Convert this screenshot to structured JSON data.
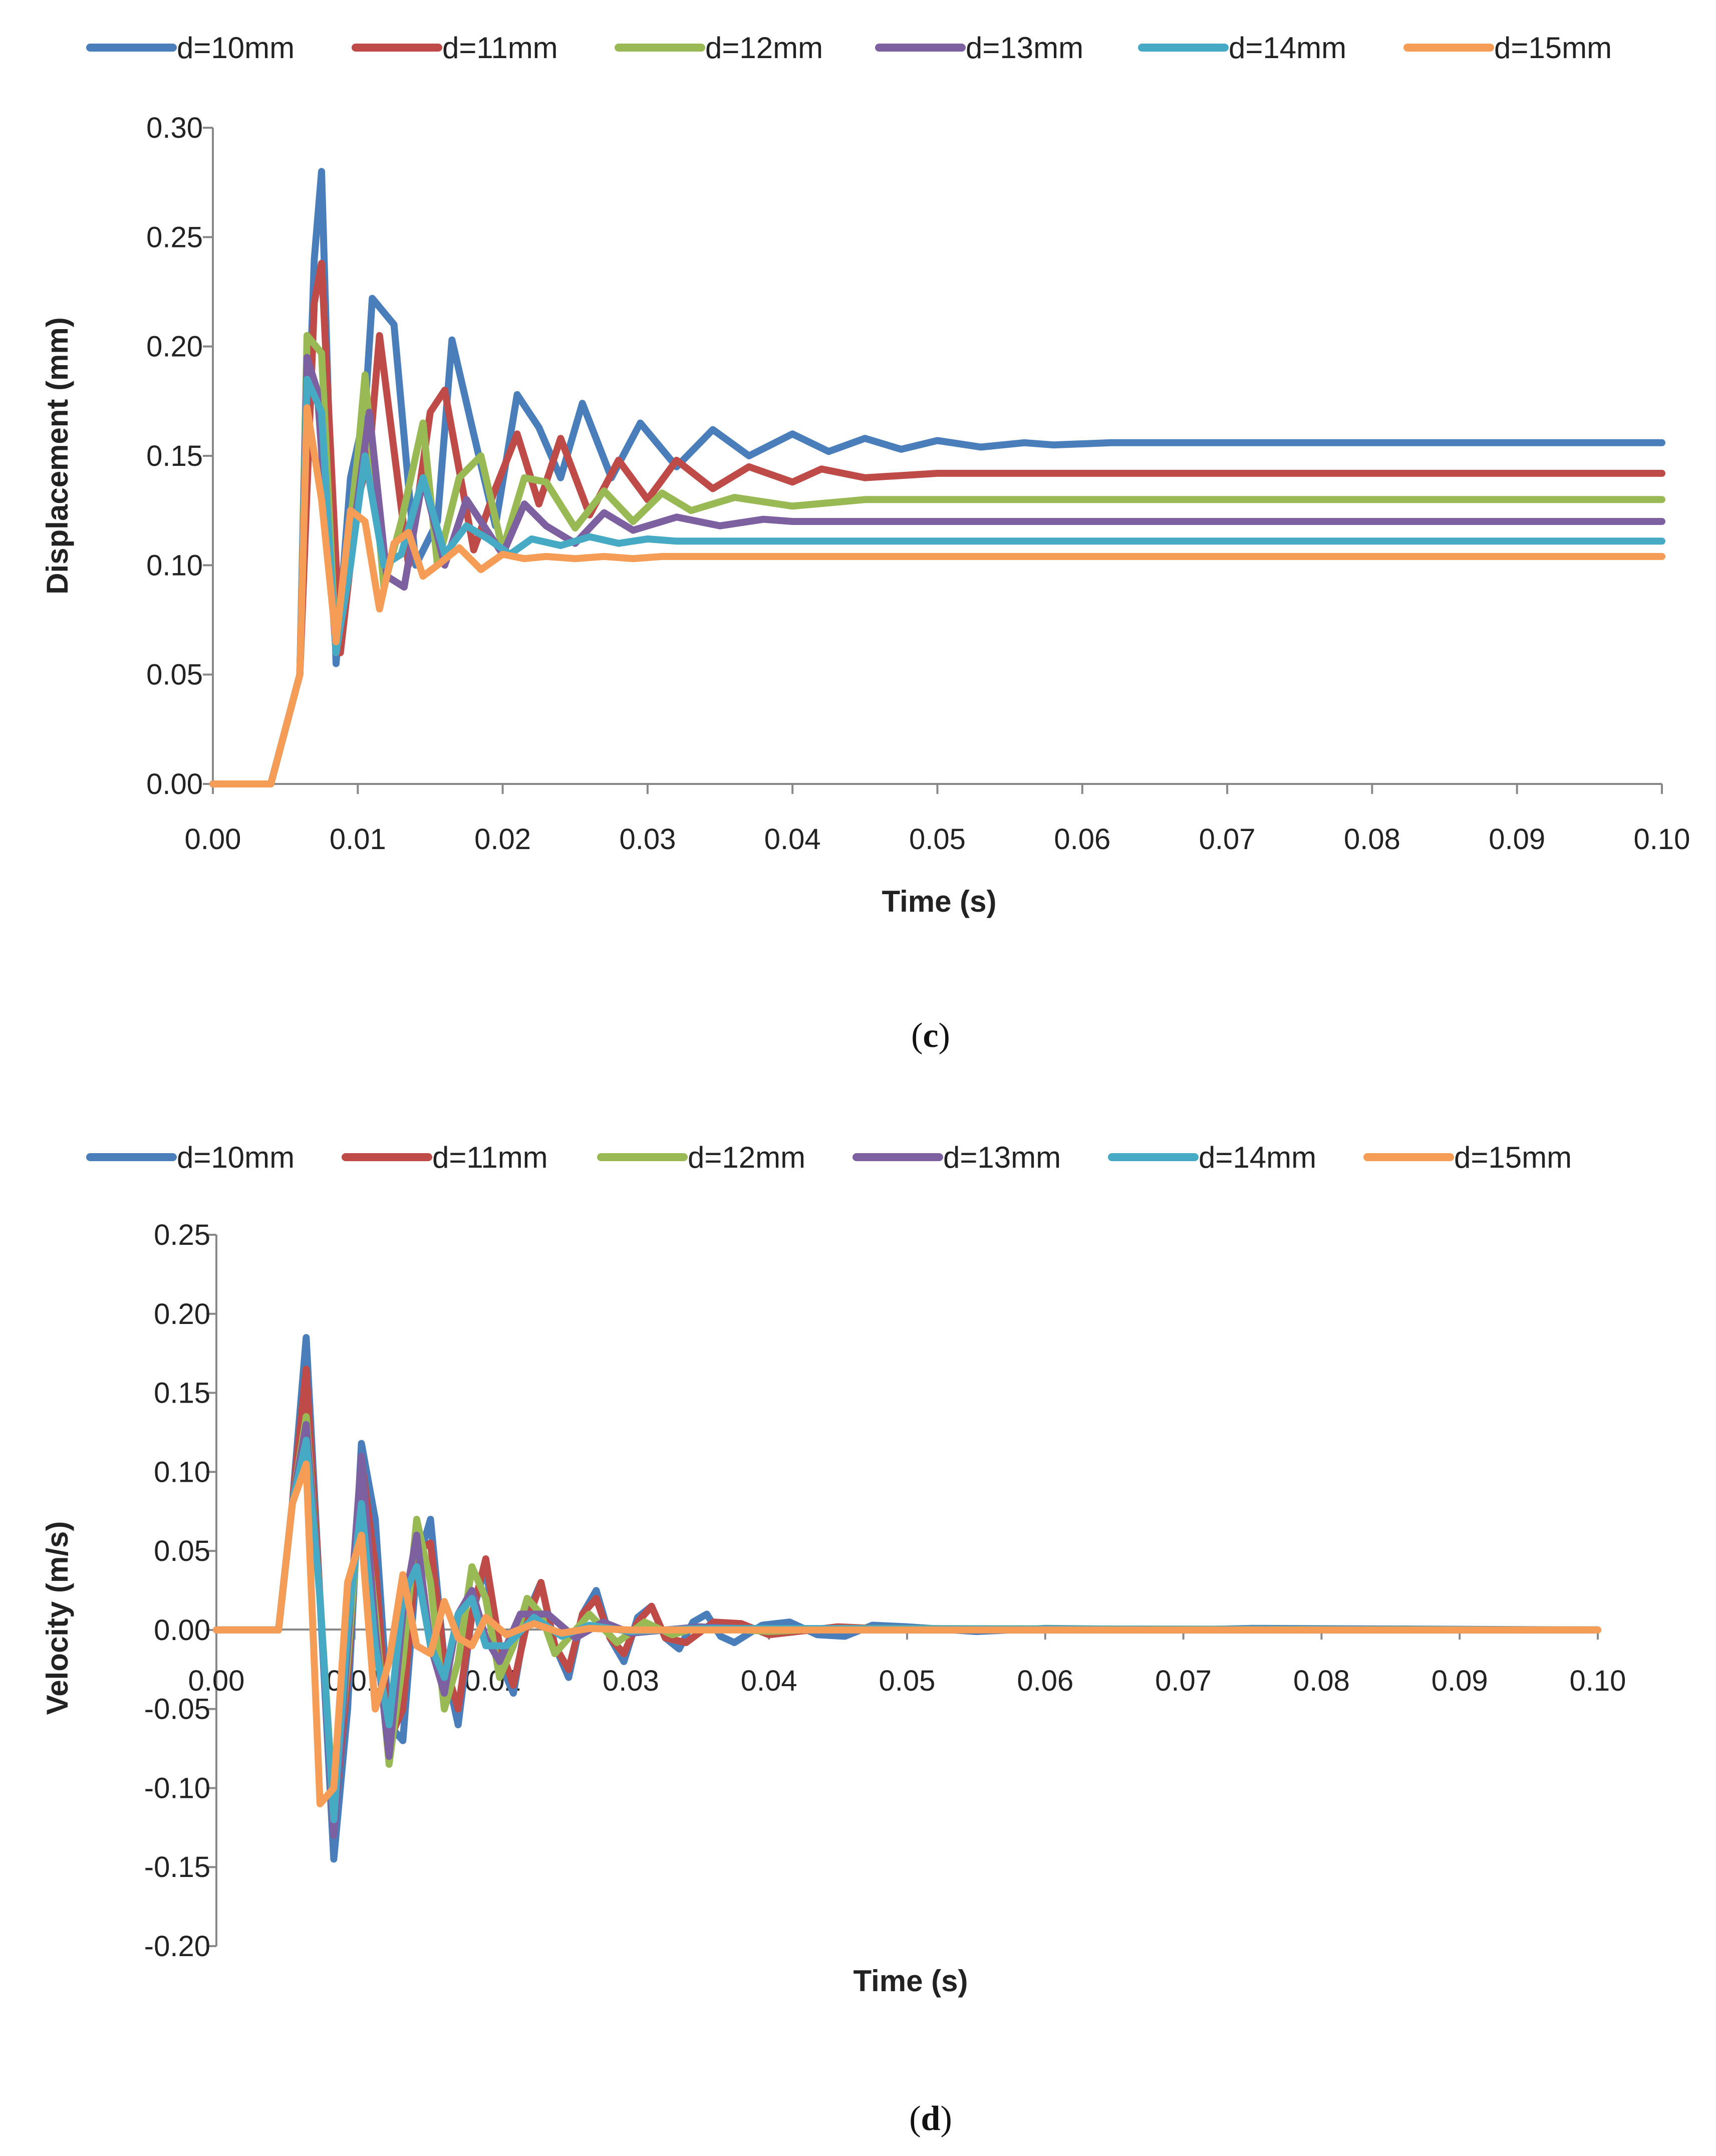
{
  "chart_data": [
    {
      "type": "line",
      "caption_open": "(",
      "caption_letter": "c",
      "caption_close": ")",
      "xlabel": "Time (s)",
      "ylabel": "Displacement  (mm)",
      "xlim": [
        0,
        0.1
      ],
      "ylim": [
        0,
        0.3
      ],
      "xticks": [
        "0.00",
        "0.01",
        "0.02",
        "0.03",
        "0.04",
        "0.05",
        "0.06",
        "0.07",
        "0.08",
        "0.09",
        "0.10"
      ],
      "yticks": [
        "0.00",
        "0.05",
        "0.10",
        "0.15",
        "0.20",
        "0.25",
        "0.30"
      ],
      "series": [
        {
          "name": "d=10mm",
          "color": "#4A7EBB",
          "x": [
            0,
            0.004,
            0.006,
            0.007,
            0.0075,
            0.0085,
            0.0095,
            0.0105,
            0.011,
            0.0125,
            0.014,
            0.0155,
            0.0165,
            0.018,
            0.0195,
            0.021,
            0.0225,
            0.024,
            0.0255,
            0.0275,
            0.0295,
            0.032,
            0.0345,
            0.037,
            0.04,
            0.0425,
            0.045,
            0.0475,
            0.05,
            0.053,
            0.056,
            0.058,
            0.062,
            0.1
          ],
          "y": [
            0,
            0,
            0.05,
            0.24,
            0.28,
            0.055,
            0.14,
            0.17,
            0.222,
            0.21,
            0.1,
            0.12,
            0.203,
            0.16,
            0.118,
            0.178,
            0.163,
            0.14,
            0.174,
            0.14,
            0.165,
            0.145,
            0.162,
            0.15,
            0.16,
            0.152,
            0.158,
            0.153,
            0.157,
            0.154,
            0.156,
            0.155,
            0.156,
            0.156
          ]
        },
        {
          "name": "d=11mm",
          "color": "#BE4B48",
          "x": [
            0,
            0.004,
            0.006,
            0.007,
            0.0075,
            0.0088,
            0.01,
            0.0108,
            0.0115,
            0.0135,
            0.015,
            0.016,
            0.018,
            0.0195,
            0.021,
            0.0225,
            0.024,
            0.026,
            0.028,
            0.03,
            0.032,
            0.0345,
            0.037,
            0.04,
            0.042,
            0.045,
            0.05,
            0.1
          ],
          "y": [
            0,
            0,
            0.05,
            0.22,
            0.238,
            0.06,
            0.13,
            0.15,
            0.205,
            0.1,
            0.17,
            0.18,
            0.107,
            0.135,
            0.16,
            0.128,
            0.158,
            0.123,
            0.148,
            0.13,
            0.148,
            0.135,
            0.145,
            0.138,
            0.144,
            0.14,
            0.142,
            0.142
          ]
        },
        {
          "name": "d=12mm",
          "color": "#98B954",
          "x": [
            0,
            0.004,
            0.006,
            0.0065,
            0.0075,
            0.0085,
            0.01,
            0.0105,
            0.0118,
            0.013,
            0.0145,
            0.0155,
            0.017,
            0.0185,
            0.02,
            0.0215,
            0.023,
            0.025,
            0.027,
            0.029,
            0.031,
            0.033,
            0.036,
            0.04,
            0.045,
            0.1
          ],
          "y": [
            0,
            0,
            0.05,
            0.205,
            0.197,
            0.06,
            0.15,
            0.187,
            0.09,
            0.12,
            0.165,
            0.1,
            0.14,
            0.15,
            0.107,
            0.14,
            0.138,
            0.117,
            0.134,
            0.12,
            0.133,
            0.125,
            0.131,
            0.127,
            0.13,
            0.13
          ]
        },
        {
          "name": "d=13mm",
          "color": "#7D60A0",
          "x": [
            0,
            0.004,
            0.006,
            0.0065,
            0.0072,
            0.0085,
            0.0098,
            0.0108,
            0.012,
            0.0132,
            0.0145,
            0.016,
            0.0175,
            0.019,
            0.02,
            0.0215,
            0.023,
            0.025,
            0.027,
            0.029,
            0.032,
            0.035,
            0.038,
            0.04,
            0.1
          ],
          "y": [
            0,
            0,
            0.05,
            0.195,
            0.18,
            0.06,
            0.12,
            0.17,
            0.095,
            0.09,
            0.14,
            0.1,
            0.13,
            0.115,
            0.105,
            0.128,
            0.118,
            0.11,
            0.124,
            0.116,
            0.122,
            0.118,
            0.121,
            0.12,
            0.12
          ]
        },
        {
          "name": "d=14mm",
          "color": "#46AAC5",
          "x": [
            0,
            0.004,
            0.006,
            0.0065,
            0.0075,
            0.0085,
            0.0095,
            0.0105,
            0.0118,
            0.013,
            0.0145,
            0.016,
            0.0175,
            0.019,
            0.0205,
            0.022,
            0.024,
            0.026,
            0.028,
            0.03,
            0.032,
            0.1
          ],
          "y": [
            0,
            0,
            0.05,
            0.185,
            0.17,
            0.06,
            0.1,
            0.15,
            0.1,
            0.105,
            0.14,
            0.105,
            0.118,
            0.112,
            0.105,
            0.112,
            0.109,
            0.113,
            0.11,
            0.112,
            0.111,
            0.111
          ]
        },
        {
          "name": "d=15mm",
          "color": "#F59D56",
          "x": [
            0,
            0.004,
            0.006,
            0.0065,
            0.0075,
            0.0085,
            0.0095,
            0.0105,
            0.0115,
            0.0125,
            0.0135,
            0.0145,
            0.0155,
            0.017,
            0.0185,
            0.02,
            0.0215,
            0.023,
            0.025,
            0.027,
            0.029,
            0.031,
            0.1
          ],
          "y": [
            0,
            0,
            0.05,
            0.172,
            0.13,
            0.065,
            0.125,
            0.12,
            0.08,
            0.11,
            0.115,
            0.095,
            0.1,
            0.108,
            0.098,
            0.105,
            0.103,
            0.104,
            0.103,
            0.104,
            0.103,
            0.104,
            0.104
          ]
        }
      ]
    },
    {
      "type": "line",
      "caption_open": "(",
      "caption_letter": "d",
      "caption_close": ")",
      "xlabel": "Time (s)",
      "ylabel": "Velocity (m/s)",
      "xlim": [
        0,
        0.1
      ],
      "ylim": [
        -0.2,
        0.25
      ],
      "xticks": [
        "0.00",
        "0.01",
        "0.02",
        "0.03",
        "0.04",
        "0.05",
        "0.06",
        "0.07",
        "0.08",
        "0.09",
        "0.10"
      ],
      "yticks": [
        "-0.20",
        "-0.15",
        "-0.10",
        "-0.05",
        "0.00",
        "0.05",
        "0.10",
        "0.15",
        "0.20",
        "0.25"
      ],
      "series": [
        {
          "name": "d=10mm",
          "color": "#4A7EBB",
          "x": [
            0,
            0.0045,
            0.0055,
            0.0065,
            0.0075,
            0.0085,
            0.0095,
            0.0105,
            0.0115,
            0.0125,
            0.0135,
            0.0145,
            0.0155,
            0.0165,
            0.0175,
            0.0185,
            0.0195,
            0.0205,
            0.0215,
            0.0225,
            0.0235,
            0.0245,
            0.0255,
            0.0265,
            0.0275,
            0.0285,
            0.0295,
            0.0305,
            0.0315,
            0.0325,
            0.0335,
            0.0345,
            0.0355,
            0.0365,
            0.0375,
            0.0395,
            0.0415,
            0.0435,
            0.0455,
            0.0475,
            0.05,
            0.055,
            0.06,
            0.07,
            0.075,
            0.1
          ],
          "y": [
            0,
            0,
            0.08,
            0.185,
            0.02,
            -0.145,
            -0.05,
            0.118,
            0.07,
            -0.06,
            -0.07,
            0.04,
            0.07,
            -0.02,
            -0.06,
            0.01,
            0.04,
            -0.02,
            -0.04,
            0.01,
            0.03,
            -0.01,
            -0.03,
            0.01,
            0.025,
            -0.005,
            -0.02,
            0.008,
            0.015,
            -0.005,
            -0.012,
            0.005,
            0.01,
            -0.004,
            -0.008,
            0.003,
            0.005,
            -0.003,
            -0.004,
            0.003,
            0.002,
            -0.001,
            0.001,
            0,
            0.001,
            0
          ]
        },
        {
          "name": "d=11mm",
          "color": "#BE4B48",
          "x": [
            0,
            0.0045,
            0.0055,
            0.0065,
            0.0075,
            0.0085,
            0.0095,
            0.0105,
            0.0115,
            0.0125,
            0.0135,
            0.0145,
            0.0155,
            0.0165,
            0.0175,
            0.0185,
            0.0195,
            0.0205,
            0.0215,
            0.0225,
            0.0235,
            0.0245,
            0.0255,
            0.0265,
            0.0275,
            0.0285,
            0.0295,
            0.0305,
            0.0315,
            0.0325,
            0.034,
            0.036,
            0.038,
            0.04,
            0.045,
            0.05,
            0.1
          ],
          "y": [
            0,
            0,
            0.08,
            0.165,
            0.02,
            -0.125,
            -0.03,
            0.108,
            0.04,
            -0.07,
            -0.05,
            0.05,
            0.055,
            -0.02,
            -0.05,
            0.01,
            0.045,
            -0.01,
            -0.035,
            0.005,
            0.03,
            -0.01,
            -0.025,
            0.01,
            0.02,
            -0.005,
            -0.015,
            0.005,
            0.015,
            -0.005,
            -0.008,
            0.005,
            0.004,
            -0.003,
            0.002,
            0,
            0
          ]
        },
        {
          "name": "d=12mm",
          "color": "#98B954",
          "x": [
            0,
            0.0045,
            0.0055,
            0.0065,
            0.0075,
            0.0085,
            0.0095,
            0.0105,
            0.0115,
            0.0125,
            0.0135,
            0.0145,
            0.0155,
            0.0165,
            0.0175,
            0.0185,
            0.0195,
            0.0205,
            0.0215,
            0.0225,
            0.0235,
            0.0245,
            0.0255,
            0.027,
            0.029,
            0.031,
            0.033,
            0.035,
            0.04,
            0.045,
            0.1
          ],
          "y": [
            0,
            0,
            0.08,
            0.135,
            0.02,
            -0.115,
            -0.02,
            0.095,
            0.01,
            -0.085,
            -0.02,
            0.07,
            0.03,
            -0.05,
            -0.02,
            0.04,
            0.02,
            -0.03,
            -0.01,
            0.02,
            0.01,
            -0.015,
            -0.005,
            0.01,
            -0.008,
            0.005,
            -0.003,
            0.002,
            -0.001,
            0.001,
            0
          ]
        },
        {
          "name": "d=13mm",
          "color": "#7D60A0",
          "x": [
            0,
            0.0045,
            0.0055,
            0.0065,
            0.0075,
            0.0085,
            0.0095,
            0.0105,
            0.0115,
            0.0125,
            0.0135,
            0.0145,
            0.0155,
            0.0165,
            0.0175,
            0.0185,
            0.0195,
            0.0205,
            0.022,
            0.024,
            0.026,
            0.028,
            0.03,
            0.035,
            0.04,
            0.1
          ],
          "y": [
            0,
            0,
            0.08,
            0.13,
            0.02,
            -0.13,
            -0.01,
            0.11,
            0,
            -0.08,
            0.01,
            0.06,
            -0.01,
            -0.04,
            0.01,
            0.025,
            -0.005,
            -0.02,
            0.01,
            0.01,
            -0.005,
            0.005,
            -0.002,
            0.002,
            0,
            0
          ]
        },
        {
          "name": "d=14mm",
          "color": "#46AAC5",
          "x": [
            0,
            0.0045,
            0.0055,
            0.0065,
            0.0075,
            0.0085,
            0.0095,
            0.0105,
            0.0115,
            0.0125,
            0.0135,
            0.0145,
            0.0155,
            0.0165,
            0.0175,
            0.0185,
            0.0195,
            0.021,
            0.023,
            0.025,
            0.027,
            0.03,
            0.035,
            0.1
          ],
          "y": [
            0,
            0,
            0.08,
            0.12,
            0.02,
            -0.12,
            0,
            0.08,
            -0.01,
            -0.06,
            0.02,
            0.04,
            -0.01,
            -0.03,
            0.01,
            0.02,
            -0.01,
            -0.01,
            0.008,
            -0.004,
            0.003,
            -0.001,
            0.001,
            0
          ]
        },
        {
          "name": "d=15mm",
          "color": "#F59D56",
          "x": [
            0,
            0.0045,
            0.0055,
            0.0065,
            0.0075,
            0.0085,
            0.0095,
            0.0105,
            0.0115,
            0.0125,
            0.0135,
            0.0145,
            0.0155,
            0.0165,
            0.0175,
            0.0185,
            0.0195,
            0.021,
            0.023,
            0.025,
            0.027,
            0.03,
            0.1
          ],
          "y": [
            0,
            0,
            0.08,
            0.105,
            -0.11,
            -0.1,
            0.03,
            0.06,
            -0.05,
            -0.02,
            0.035,
            -0.01,
            -0.015,
            0.018,
            -0.005,
            -0.01,
            0.008,
            -0.003,
            0.004,
            -0.002,
            0.001,
            0,
            0
          ]
        }
      ]
    }
  ]
}
